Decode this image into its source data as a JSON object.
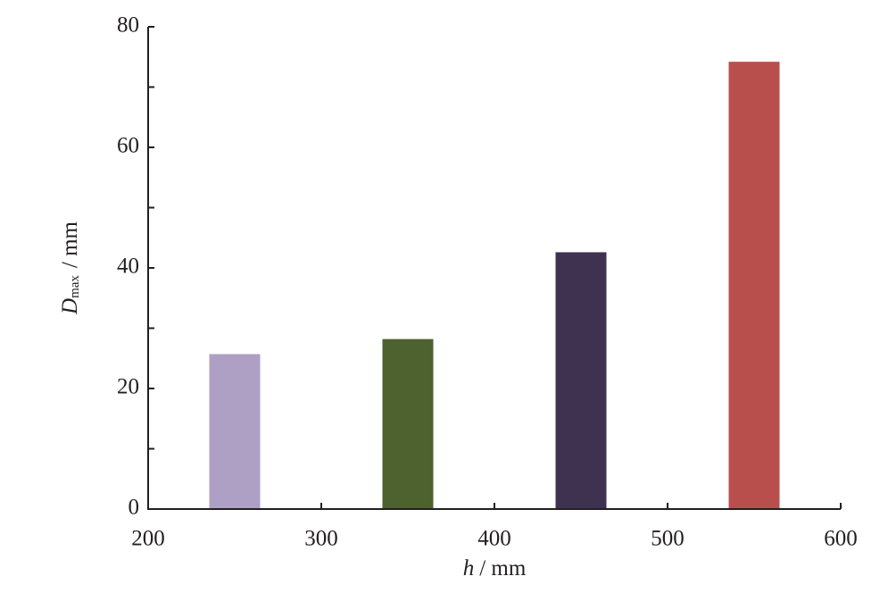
{
  "chart_data": {
    "type": "bar",
    "x": [
      250,
      350,
      450,
      550
    ],
    "values": [
      25.7,
      28.2,
      42.6,
      74.2
    ],
    "colors": [
      "#ae9fc4",
      "#4d622f",
      "#3f3251",
      "#b94f4c"
    ],
    "xlim": [
      200,
      600
    ],
    "xticks": [
      200,
      300,
      400,
      500,
      600
    ],
    "ylim": [
      0,
      80
    ],
    "yticks": [
      0,
      20,
      40,
      60,
      80
    ],
    "yminorticks": [
      10,
      30,
      50,
      70
    ],
    "xlabel": {
      "symbol": "h",
      "unit": "/ mm"
    },
    "ylabel": {
      "symbol": "D",
      "subscript": "max",
      "unit": "/ mm"
    },
    "grid": false
  }
}
